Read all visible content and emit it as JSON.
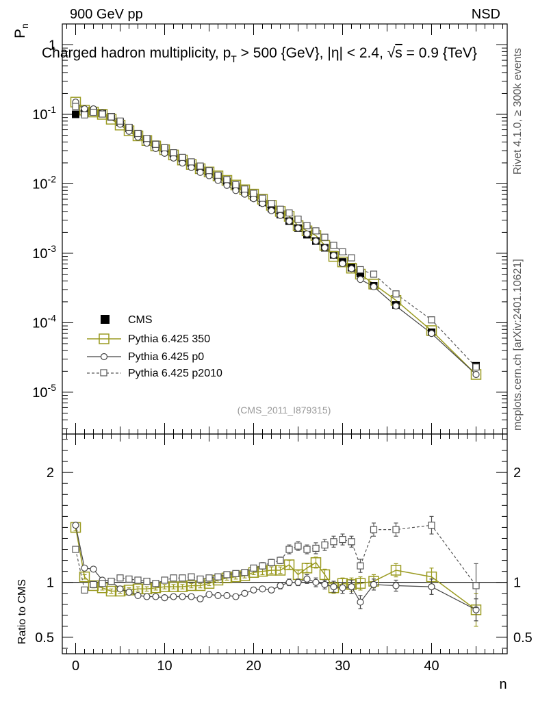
{
  "header": {
    "energy": "900 GeV pp",
    "process": "NSD"
  },
  "side_text": {
    "rivet": "Rivet 4.1.0, ≥ 300k events",
    "source": "mcplots.cern.ch [arXiv:2401.10621]"
  },
  "watermark": "(CMS_2011_I879315)",
  "colors": {
    "cms": "#000000",
    "p350": "#9a9a20",
    "p0": "#444444",
    "p2010": "#555555"
  },
  "chart_data": [
    {
      "type": "scatter",
      "scale": "log",
      "title": "Charged hadron multiplicity, p_T > 500 {GeV}, |η| < 2.4, √s = 0.9 {TeV}",
      "ylabel": "P_n",
      "xlim": [
        -1.5,
        48.5
      ],
      "ylim": [
        2.5e-06,
        2
      ],
      "ytick_labels": [
        "1",
        "10^-1",
        "10^-2",
        "10^-3",
        "10^-4",
        "10^-5"
      ],
      "legend": [
        "CMS",
        "Pythia 6.425 350",
        "Pythia 6.425 p0",
        "Pythia 6.425 p2010"
      ],
      "x": [
        0,
        1,
        2,
        3,
        4,
        5,
        6,
        7,
        8,
        9,
        10,
        11,
        12,
        13,
        14,
        15,
        16,
        17,
        18,
        19,
        20,
        21,
        22,
        23,
        24,
        25,
        26,
        27,
        28,
        29,
        30,
        31,
        32,
        33.5,
        36,
        40,
        45
      ],
      "series": [
        {
          "name": "CMS",
          "values": [
            0.1,
            0.105,
            0.11,
            0.105,
            0.092,
            0.077,
            0.063,
            0.052,
            0.044,
            0.037,
            0.032,
            0.027,
            0.023,
            0.0198,
            0.0172,
            0.0148,
            0.0127,
            0.0107,
            0.0091,
            0.0077,
            0.0065,
            0.0054,
            0.0044,
            0.0036,
            0.0029,
            0.0023,
            0.00185,
            0.0015,
            0.0012,
            0.00095,
            0.00075,
            0.00062,
            0.00051,
            0.00034,
            0.00018,
            7.3e-05,
            2.4e-05
          ]
        },
        {
          "name": "Pythia 6.425 350",
          "values": [
            0.15,
            0.115,
            0.108,
            0.1,
            0.085,
            0.07,
            0.058,
            0.049,
            0.042,
            0.035,
            0.031,
            0.026,
            0.022,
            0.019,
            0.0165,
            0.0148,
            0.013,
            0.0112,
            0.0096,
            0.0082,
            0.0071,
            0.006,
            0.0049,
            0.004,
            0.0034,
            0.0025,
            0.0021,
            0.0018,
            0.0013,
            0.0009,
            0.00075,
            0.00061,
            0.0005,
            0.00036,
            0.00021,
            7.7e-05,
            1.8e-05
          ]
        },
        {
          "name": "Pythia 6.425 p0",
          "values": [
            0.15,
            0.12,
            0.12,
            0.105,
            0.092,
            0.072,
            0.057,
            0.047,
            0.0385,
            0.0322,
            0.0275,
            0.0235,
            0.0199,
            0.0172,
            0.0146,
            0.0131,
            0.0112,
            0.0095,
            0.008,
            0.0071,
            0.0061,
            0.0052,
            0.0041,
            0.0035,
            0.0029,
            0.0023,
            0.0019,
            0.0015,
            0.0012,
            0.00093,
            0.00071,
            0.0006,
            0.00042,
            0.00033,
            0.000174,
            7e-05,
            1.8e-05
          ]
        },
        {
          "name": "Pythia 6.425 p2010",
          "values": [
            0.13,
            0.098,
            0.107,
            0.101,
            0.092,
            0.08,
            0.065,
            0.053,
            0.045,
            0.037,
            0.033,
            0.028,
            0.024,
            0.0207,
            0.018,
            0.0155,
            0.0133,
            0.0115,
            0.0097,
            0.0084,
            0.0073,
            0.0062,
            0.0052,
            0.0043,
            0.0038,
            0.0031,
            0.0025,
            0.0021,
            0.0017,
            0.0013,
            0.00105,
            0.00086,
            0.00058,
            0.0005,
            0.00026,
            0.00011,
            2.3e-05
          ]
        }
      ]
    },
    {
      "type": "line",
      "title": "Ratio to CMS",
      "xlabel": "n",
      "ylabel": "Ratio to CMS",
      "xlim": [
        -1.5,
        48.5
      ],
      "ylim": [
        0.35,
        2.35
      ],
      "yticks": [
        0.5,
        1,
        2
      ],
      "ytick_labels": [
        "0.5",
        "1",
        "2"
      ],
      "xticks": [
        0,
        10,
        20,
        30,
        40
      ],
      "xtick_labels": [
        "0",
        "10",
        "20",
        "30",
        "40"
      ],
      "x": [
        0,
        1,
        2,
        3,
        4,
        5,
        6,
        7,
        8,
        9,
        10,
        11,
        12,
        13,
        14,
        15,
        16,
        17,
        18,
        19,
        20,
        21,
        22,
        23,
        24,
        25,
        26,
        27,
        28,
        29,
        30,
        31,
        32,
        33.5,
        36,
        40,
        45
      ],
      "series": [
        {
          "name": "Pythia 6.425 350",
          "values": [
            1.5,
            1.05,
            0.97,
            0.95,
            0.92,
            0.92,
            0.93,
            0.94,
            0.94,
            0.95,
            0.96,
            0.96,
            0.96,
            0.97,
            0.97,
            0.99,
            1.02,
            1.04,
            1.05,
            1.06,
            1.09,
            1.1,
            1.11,
            1.11,
            1.16,
            1.07,
            1.13,
            1.18,
            1.07,
            0.95,
            0.99,
            0.98,
            0.99,
            1.01,
            1.11,
            1.05,
            0.75
          ],
          "errors": [
            0.03,
            0.02,
            0.02,
            0.02,
            0.02,
            0.02,
            0.02,
            0.02,
            0.02,
            0.02,
            0.02,
            0.02,
            0.02,
            0.02,
            0.02,
            0.02,
            0.02,
            0.02,
            0.02,
            0.02,
            0.02,
            0.03,
            0.03,
            0.03,
            0.04,
            0.04,
            0.04,
            0.05,
            0.05,
            0.05,
            0.05,
            0.06,
            0.06,
            0.06,
            0.06,
            0.08,
            0.15
          ]
        },
        {
          "name": "Pythia 6.425 p0",
          "values": [
            1.52,
            1.13,
            1.12,
            1.02,
            1.01,
            0.94,
            0.91,
            0.88,
            0.87,
            0.87,
            0.86,
            0.87,
            0.87,
            0.87,
            0.85,
            0.89,
            0.88,
            0.88,
            0.87,
            0.9,
            0.93,
            0.94,
            0.93,
            0.97,
            1.0,
            1.0,
            1.03,
            1.0,
            0.98,
            0.96,
            0.95,
            0.96,
            0.82,
            0.98,
            0.97,
            0.96,
            0.75
          ],
          "errors": [
            0.02,
            0.02,
            0.02,
            0.02,
            0.02,
            0.02,
            0.02,
            0.02,
            0.02,
            0.02,
            0.02,
            0.02,
            0.02,
            0.02,
            0.02,
            0.02,
            0.02,
            0.02,
            0.02,
            0.02,
            0.02,
            0.02,
            0.02,
            0.03,
            0.03,
            0.03,
            0.04,
            0.04,
            0.04,
            0.05,
            0.05,
            0.06,
            0.06,
            0.05,
            0.05,
            0.07,
            0.1
          ]
        },
        {
          "name": "Pythia 6.425 p2010",
          "values": [
            1.3,
            0.93,
            0.98,
            0.99,
            1.01,
            1.04,
            1.03,
            1.02,
            1.01,
            0.99,
            1.02,
            1.04,
            1.04,
            1.05,
            1.03,
            1.04,
            1.05,
            1.07,
            1.08,
            1.09,
            1.13,
            1.15,
            1.18,
            1.2,
            1.3,
            1.33,
            1.3,
            1.31,
            1.34,
            1.37,
            1.39,
            1.37,
            1.15,
            1.48,
            1.48,
            1.52,
            0.97
          ],
          "errors": [
            0.02,
            0.02,
            0.02,
            0.02,
            0.02,
            0.02,
            0.02,
            0.02,
            0.02,
            0.02,
            0.02,
            0.02,
            0.02,
            0.02,
            0.02,
            0.02,
            0.02,
            0.02,
            0.02,
            0.02,
            0.02,
            0.03,
            0.03,
            0.03,
            0.04,
            0.04,
            0.04,
            0.05,
            0.05,
            0.05,
            0.05,
            0.05,
            0.06,
            0.06,
            0.06,
            0.08,
            0.2
          ]
        }
      ]
    }
  ]
}
